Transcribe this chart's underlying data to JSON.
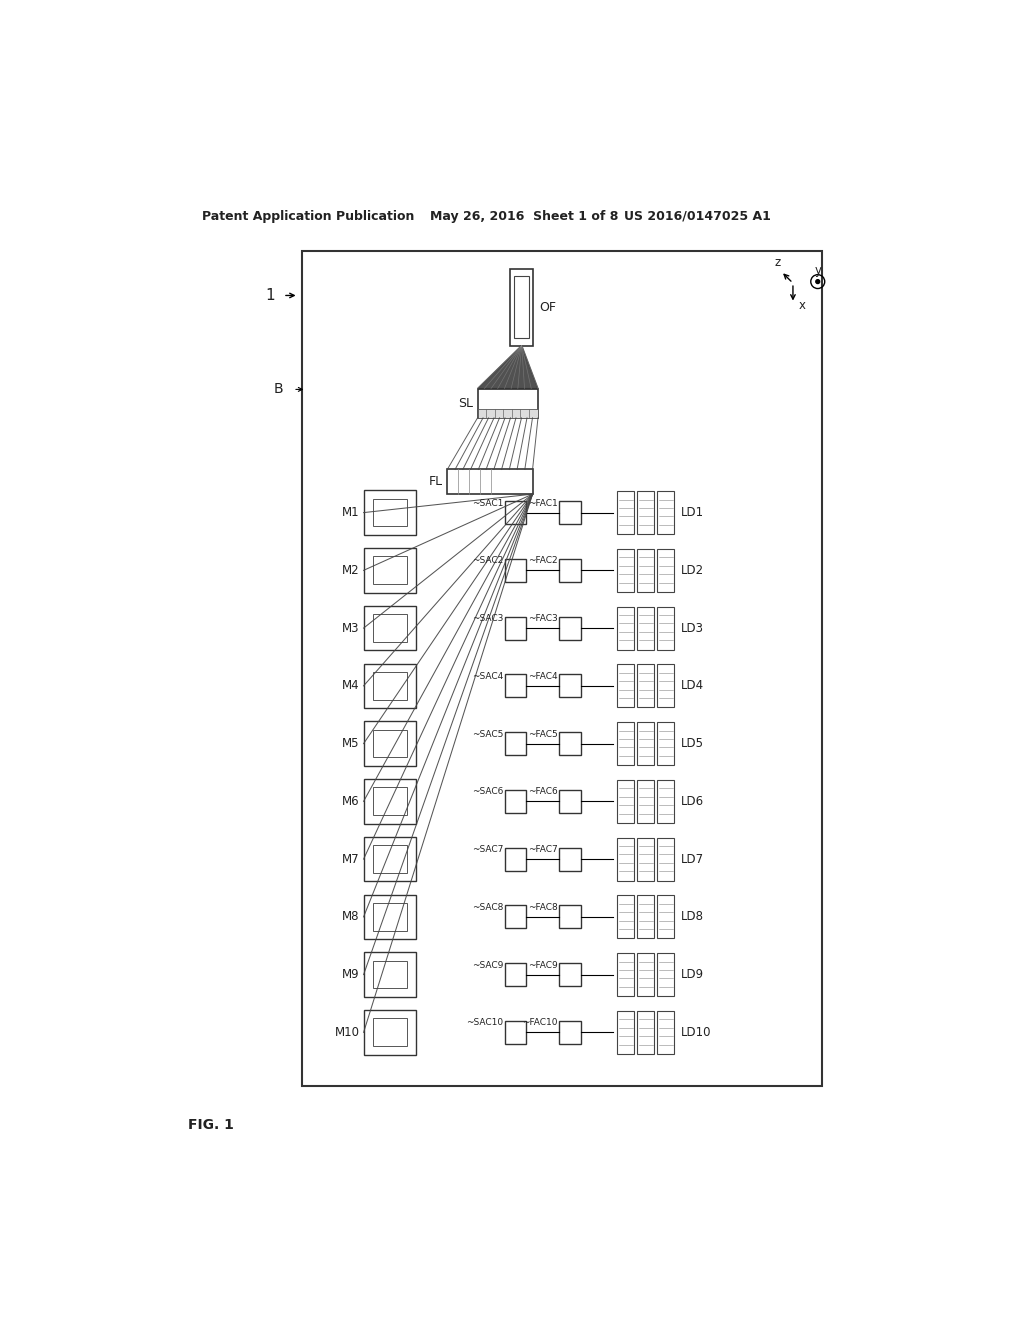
{
  "title_left": "Patent Application Publication",
  "title_mid": "May 26, 2016  Sheet 1 of 8",
  "title_right": "US 2016/0147025 A1",
  "fig_label": "FIG. 1",
  "module_label": "1",
  "beam_label": "B",
  "bg_color": "#ffffff",
  "border_color": "#333333",
  "text_color": "#222222",
  "num_rows": 10,
  "mirror_labels": [
    "M1",
    "M2",
    "M3",
    "M4",
    "M5",
    "M6",
    "M7",
    "M8",
    "M9",
    "M10"
  ],
  "sac_labels": [
    "~SAC1",
    "~SAC2",
    "~SAC3",
    "~SAC4",
    "~SAC5",
    "~SAC6",
    "~SAC7",
    "~SAC8",
    "~SAC9",
    "~SAC10"
  ],
  "fac_labels": [
    "~FAC1",
    "~FAC2",
    "~FAC3",
    "~FAC4",
    "~FAC5",
    "~FAC6",
    "~FAC7",
    "~FAC8",
    "~FAC9",
    "~FAC10"
  ],
  "ld_labels": [
    "LD1",
    "LD2",
    "LD3",
    "LD4",
    "LD5",
    "LD6",
    "LD7",
    "LD8",
    "LD9",
    "LD10"
  ],
  "of_label": "OF",
  "sl_label": "SL",
  "fl_label": "FL"
}
